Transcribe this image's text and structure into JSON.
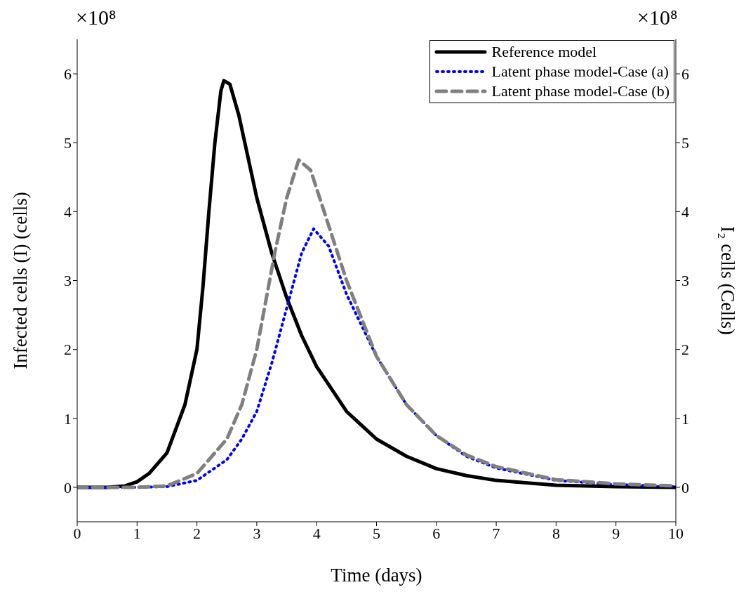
{
  "chart_data": {
    "type": "line",
    "xlabel": "Time (days)",
    "ylabel": "Infected cells (I) (cells)",
    "y2label": "I₂ cells (Cells)",
    "annotations": [
      "×10⁸",
      "×10⁸"
    ],
    "xlim": [
      0,
      10
    ],
    "xticks": [
      0,
      1,
      2,
      3,
      4,
      5,
      6,
      7,
      8,
      9,
      10
    ],
    "ylim": [
      -0.5,
      6.5
    ],
    "yticks": [
      0,
      1,
      2,
      3,
      4,
      5,
      6
    ],
    "y2lim": [
      -0.5,
      6.5
    ],
    "y2ticks": [
      0,
      1,
      2,
      3,
      4,
      5,
      6
    ],
    "legend": "top right",
    "marker": "none",
    "grid": false,
    "series": [
      {
        "name": "Reference model",
        "color": "#000000",
        "line_style": "solid",
        "x": [
          0,
          0.5,
          0.8,
          1,
          1.2,
          1.5,
          1.8,
          2,
          2.1,
          2.2,
          2.3,
          2.4,
          2.45,
          2.55,
          2.7,
          2.85,
          3,
          3.25,
          3.5,
          3.75,
          4,
          4.5,
          5,
          5.5,
          6,
          6.5,
          7,
          8,
          9,
          10
        ],
        "values": [
          0,
          0,
          0.02,
          0.08,
          0.2,
          0.5,
          1.2,
          2.0,
          2.9,
          4.0,
          5.0,
          5.75,
          5.9,
          5.85,
          5.4,
          4.8,
          4.2,
          3.4,
          2.75,
          2.2,
          1.75,
          1.1,
          0.7,
          0.45,
          0.27,
          0.17,
          0.1,
          0.03,
          0.01,
          0
        ]
      },
      {
        "name": "Latent phase model-Case (a)",
        "color": "#0000ff",
        "line_style": "dotted",
        "axis": "y2",
        "x": [
          0,
          1,
          1.5,
          2,
          2.5,
          2.75,
          3,
          3.25,
          3.5,
          3.75,
          3.95,
          4.2,
          4.5,
          5,
          5.5,
          6,
          6.5,
          7,
          8,
          9,
          10
        ],
        "values": [
          0,
          0,
          0.01,
          0.1,
          0.4,
          0.7,
          1.1,
          1.8,
          2.6,
          3.4,
          3.75,
          3.5,
          2.8,
          1.9,
          1.2,
          0.75,
          0.45,
          0.28,
          0.1,
          0.04,
          0.01
        ]
      },
      {
        "name": "Latent phase model-Case (b)",
        "color": "#808080",
        "line_style": "dashed",
        "axis": "y2",
        "x": [
          0,
          1,
          1.5,
          2,
          2.5,
          2.75,
          3,
          3.15,
          3.3,
          3.5,
          3.7,
          3.9,
          4.2,
          4.5,
          5,
          5.5,
          6,
          6.5,
          7,
          8,
          9,
          10
        ],
        "values": [
          0,
          0,
          0.02,
          0.2,
          0.7,
          1.2,
          2.0,
          2.7,
          3.4,
          4.2,
          4.75,
          4.6,
          3.8,
          3.0,
          1.9,
          1.2,
          0.75,
          0.47,
          0.3,
          0.11,
          0.05,
          0.02
        ]
      }
    ]
  }
}
